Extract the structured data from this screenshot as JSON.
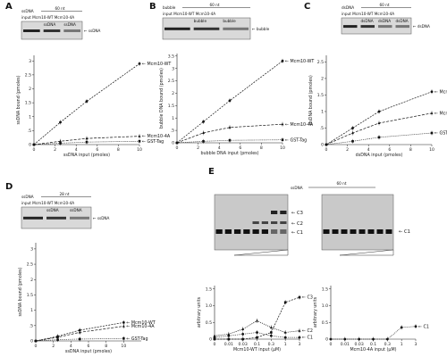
{
  "panels": [
    {
      "letter": "A"
    },
    {
      "letter": "B"
    },
    {
      "letter": "C"
    },
    {
      "letter": "D"
    },
    {
      "letter": "E"
    }
  ],
  "insets": {
    "A": {
      "substrate": "ssDNA",
      "length": "60 nt",
      "row": "input  Mcm10-WT  Mcm10-4A",
      "lanes": [
        "ssDNA",
        "ssDNA"
      ],
      "band": "ssDNA"
    },
    "B": {
      "substrate": "bubble",
      "length": "60 nt",
      "row": "input  Mcm10-WT  Mcm10-4A",
      "lanes": [
        "bubble",
        "bubble"
      ],
      "band": "bubble"
    },
    "C": {
      "substrate": "dsDNA",
      "length": "60 nt",
      "row": "input  Mcm10-WT  Mcm10-4A",
      "lanes": [
        "dsDNA",
        "dsDNA",
        "dsDNA"
      ],
      "band": "dsDNA"
    },
    "D": {
      "substrate": "ssDNA",
      "length": "28 nt",
      "row": "input  Mcm10-WT  Mcm10-4A",
      "lanes": [
        "ssDNA",
        "ssDNA"
      ],
      "band": "ssDNA"
    },
    "E": {
      "substrate": "ssDNA",
      "length": "60 nt",
      "bands": [
        "C3",
        "C2",
        "C1"
      ],
      "band_right": "C1"
    }
  },
  "chart_data": [
    {
      "panel": "A",
      "type": "line",
      "xlabel": "ssDNA input (pmoles)",
      "ylabel": "ssDNA bound (pmoles)",
      "xlim": [
        0,
        10
      ],
      "ylim": [
        0,
        3.2
      ],
      "xticks": [
        0,
        2,
        4,
        6,
        8,
        10
      ],
      "yticks": [
        0.0,
        0.5,
        1.0,
        1.5,
        2.0,
        2.5,
        3.0
      ],
      "xtick_labels": [
        "0",
        "2",
        "4",
        "6",
        "8",
        "10"
      ],
      "ytick_labels": [
        "0",
        ".5",
        "1",
        "1.5",
        "2",
        "2.5",
        "3"
      ],
      "series": [
        {
          "name": "Mcm10-WT",
          "x": [
            0,
            2.5,
            5,
            10
          ],
          "y": [
            0,
            0.8,
            1.55,
            2.9
          ]
        },
        {
          "name": "Mcm10-4A",
          "x": [
            0,
            2.5,
            5,
            10
          ],
          "y": [
            0,
            0.12,
            0.22,
            0.3
          ]
        },
        {
          "name": "GST-Tag",
          "x": [
            0,
            2.5,
            5,
            10
          ],
          "y": [
            0,
            0.05,
            0.09,
            0.12
          ]
        }
      ]
    },
    {
      "panel": "B",
      "type": "line",
      "xlabel": "bubble DNA input (pmoles)",
      "ylabel": "bubble DNA bound (pmoles)",
      "xlim": [
        0,
        10
      ],
      "ylim": [
        0,
        3.6
      ],
      "xticks": [
        0,
        2,
        4,
        6,
        8,
        10
      ],
      "yticks": [
        0.0,
        0.5,
        1.0,
        1.5,
        2.0,
        2.5,
        3.0,
        3.5
      ],
      "xtick_labels": [
        "0",
        "2",
        "4",
        "6",
        "8",
        "10"
      ],
      "ytick_labels": [
        "0",
        ".5",
        "1",
        "1.5",
        "2",
        "2.5",
        "3",
        "3.5"
      ],
      "series": [
        {
          "name": "Mcm10-WT",
          "x": [
            0,
            2.5,
            5,
            10
          ],
          "y": [
            0,
            0.85,
            1.7,
            3.3
          ]
        },
        {
          "name": "Mcm10-4A",
          "x": [
            0,
            2.5,
            5,
            10
          ],
          "y": [
            0,
            0.4,
            0.62,
            0.75
          ]
        },
        {
          "name": "GST-Tag",
          "x": [
            0,
            2.5,
            5,
            10
          ],
          "y": [
            0,
            0.06,
            0.1,
            0.12
          ]
        }
      ]
    },
    {
      "panel": "C",
      "type": "line",
      "xlabel": "dsDNA input (pmoles)",
      "ylabel": "dsDNA bound (pmoles)",
      "xlim": [
        0,
        10
      ],
      "ylim": [
        0,
        2.7
      ],
      "xticks": [
        0,
        2,
        4,
        6,
        8,
        10
      ],
      "yticks": [
        0.0,
        0.5,
        1.0,
        1.5,
        2.0,
        2.5
      ],
      "xtick_labels": [
        "0",
        "2",
        "4",
        "6",
        "8",
        "10"
      ],
      "ytick_labels": [
        "0",
        ".5",
        "1",
        "1.5",
        "2",
        "2.5"
      ],
      "series": [
        {
          "name": "Mcm10-WT",
          "x": [
            0,
            2.5,
            5,
            10
          ],
          "y": [
            0,
            0.5,
            1.0,
            1.6
          ]
        },
        {
          "name": "Mcm10-4A",
          "x": [
            0,
            2.5,
            5,
            10
          ],
          "y": [
            0,
            0.35,
            0.65,
            0.95
          ]
        },
        {
          "name": "GST-Tag",
          "x": [
            0,
            2.5,
            5,
            10
          ],
          "y": [
            0,
            0.1,
            0.22,
            0.35
          ]
        }
      ]
    },
    {
      "panel": "D",
      "type": "line",
      "xlabel": "ssDNA input (pmoles)",
      "ylabel": "ssDNA bound (pmoles)",
      "xlim": [
        0,
        12
      ],
      "ylim": [
        0,
        3.2
      ],
      "xticks": [
        0,
        2,
        4,
        6,
        8,
        10
      ],
      "yticks": [
        0.0,
        0.5,
        1.0,
        1.5,
        2.0,
        2.5,
        3.0
      ],
      "xtick_labels": [
        "0",
        "2",
        "4",
        "6",
        "8",
        "10"
      ],
      "ytick_labels": [
        "0",
        ".5",
        "1",
        "1.5",
        "2",
        "2.5",
        "3"
      ],
      "series": [
        {
          "name": "Mcm10-WT",
          "x": [
            0,
            2.5,
            5,
            10
          ],
          "y": [
            0,
            0.15,
            0.35,
            0.6
          ]
        },
        {
          "name": "Mcm10-4A",
          "x": [
            0,
            2.5,
            5,
            10
          ],
          "y": [
            0,
            0.12,
            0.28,
            0.48
          ]
        },
        {
          "name": "GST-Tag",
          "x": [
            0,
            2.5,
            5,
            10
          ],
          "y": [
            0,
            0.04,
            0.06,
            0.08
          ]
        }
      ]
    },
    {
      "panel": "E-left",
      "type": "line",
      "xlabel": "Mcm10-WT input (μM)",
      "ylabel": "arbitrary units",
      "xlim": [
        0,
        6
      ],
      "ylim": [
        0,
        1.6
      ],
      "xticks": [
        0,
        1,
        2,
        3,
        4,
        5,
        6
      ],
      "yticks": [
        0,
        0.5,
        1.0,
        1.5
      ],
      "xtick_labels": [
        "0",
        "0.01",
        "0.03",
        "0.1",
        "0.3",
        "1",
        "3"
      ],
      "ytick_labels": [
        "0",
        "0.5",
        "1.0",
        "1.5"
      ],
      "series": [
        {
          "name": "C3",
          "x": [
            0,
            1,
            2,
            3,
            4,
            5,
            6
          ],
          "y": [
            0,
            0,
            0,
            0.05,
            0.2,
            1.1,
            1.25
          ]
        },
        {
          "name": "C2",
          "x": [
            0,
            1,
            2,
            3,
            4,
            5,
            6
          ],
          "y": [
            0.1,
            0.15,
            0.3,
            0.55,
            0.35,
            0.2,
            0.25
          ]
        },
        {
          "name": "C1",
          "x": [
            0,
            1,
            2,
            3,
            4,
            5,
            6
          ],
          "y": [
            0.05,
            0.1,
            0.15,
            0.2,
            0.1,
            0.05,
            0.05
          ]
        }
      ]
    },
    {
      "panel": "E-right",
      "type": "line",
      "xlabel": "Mcm10-4A input (μM)",
      "ylabel": "arbitrary units",
      "xlim": [
        0,
        6
      ],
      "ylim": [
        0,
        1.6
      ],
      "xticks": [
        0,
        1,
        2,
        3,
        4,
        5,
        6
      ],
      "yticks": [
        0,
        0.5,
        1.0,
        1.5
      ],
      "xtick_labels": [
        "0",
        "0.01",
        "0.03",
        "0.1",
        "0.3",
        "1",
        "3"
      ],
      "ytick_labels": [
        "0",
        "0.5",
        "1.0",
        "1.5"
      ],
      "series": [
        {
          "name": "C1",
          "x": [
            0,
            1,
            2,
            3,
            4,
            5,
            6
          ],
          "y": [
            0,
            0,
            0,
            0,
            0,
            0.35,
            0.38
          ]
        }
      ]
    }
  ],
  "colors": {
    "ink": "#222222",
    "wt": "#111111",
    "mut": "#333333",
    "tag": "#555555"
  }
}
